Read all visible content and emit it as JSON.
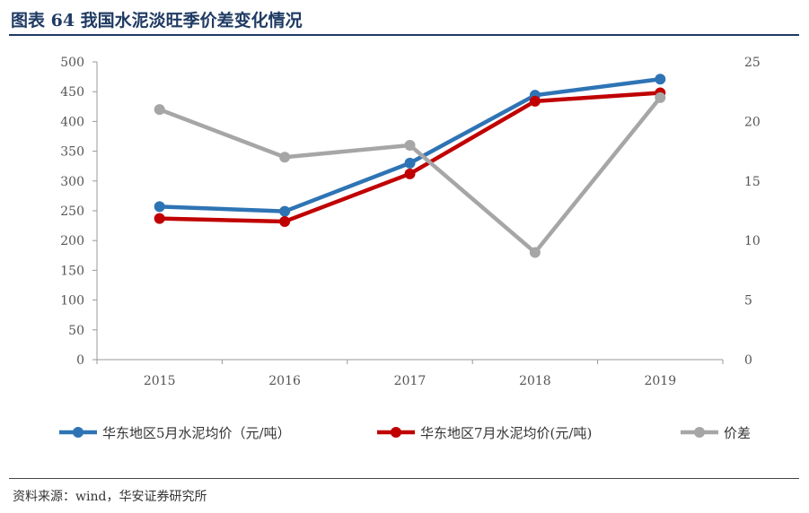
{
  "header": {
    "title": "图表 64  我国水泥淡旺季价差变化情况"
  },
  "footer": {
    "source": "资料来源：wind，华安证券研究所"
  },
  "chart_data": {
    "type": "line",
    "categories": [
      "2015",
      "2016",
      "2017",
      "2018",
      "2019"
    ],
    "y_left": {
      "ticks": [
        "0",
        "50",
        "100",
        "150",
        "200",
        "250",
        "300",
        "350",
        "400",
        "450",
        "500"
      ],
      "range": [
        0,
        500
      ]
    },
    "y_right": {
      "ticks": [
        "0",
        "5",
        "10",
        "15",
        "20",
        "25"
      ],
      "range": [
        0,
        25
      ]
    },
    "series": [
      {
        "name": "华东地区5月水泥均价（元/吨）",
        "axis": "left",
        "color": "#2e74b5",
        "values": [
          257,
          249,
          330,
          444,
          471
        ]
      },
      {
        "name": "华东地区7月水泥均价(元/吨)",
        "axis": "left",
        "color": "#c00000",
        "values": [
          237,
          232,
          312,
          434,
          448
        ]
      },
      {
        "name": "价差",
        "axis": "right",
        "color": "#a6a6a6",
        "values": [
          21,
          17,
          18,
          9,
          22
        ]
      }
    ],
    "legend_position": "bottom",
    "grid": false
  }
}
